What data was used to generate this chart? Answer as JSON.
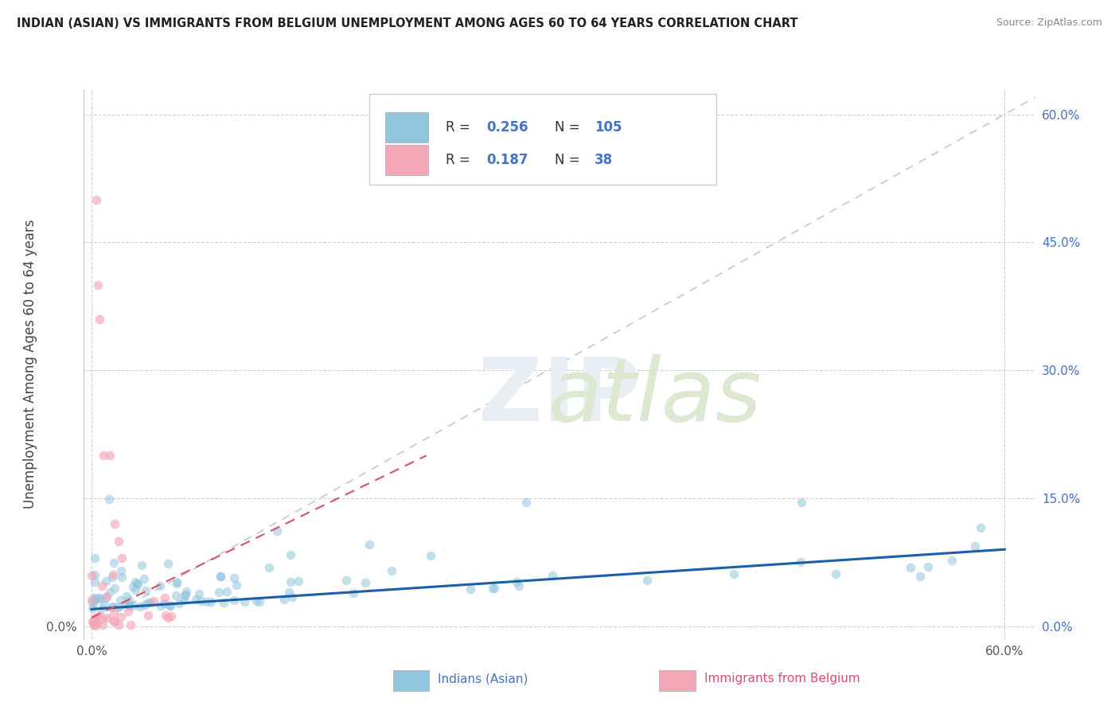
{
  "title": "INDIAN (ASIAN) VS IMMIGRANTS FROM BELGIUM UNEMPLOYMENT AMONG AGES 60 TO 64 YEARS CORRELATION CHART",
  "source": "Source: ZipAtlas.com",
  "ylabel": "Unemployment Among Ages 60 to 64 years",
  "legend_R_blue": "0.256",
  "legend_N_blue": "105",
  "legend_R_pink": "0.187",
  "legend_N_pink": "38",
  "color_blue": "#92c5de",
  "color_pink": "#f4a6b8",
  "color_blue_line": "#1a5fa8",
  "color_pink_line": "#d94f6e",
  "color_diag": "#b0b0b0",
  "ytick_labels": [
    "0.0%",
    "15.0%",
    "30.0%",
    "45.0%",
    "60.0%"
  ],
  "ytick_vals": [
    0.0,
    0.15,
    0.3,
    0.45,
    0.6
  ],
  "xtick_labels": [
    "0.0%",
    "60.0%"
  ],
  "xtick_vals": [
    0.0,
    0.6
  ],
  "xlim": [
    -0.005,
    0.62
  ],
  "ylim": [
    -0.015,
    0.63
  ],
  "blue_line_x": [
    0.0,
    0.6
  ],
  "blue_line_y": [
    0.02,
    0.09
  ],
  "pink_line_x": [
    0.0,
    0.22
  ],
  "pink_line_y": [
    0.01,
    0.2
  ],
  "diag_line_x": [
    0.0,
    0.62
  ],
  "diag_line_y": [
    0.0,
    0.62
  ],
  "legend_label_blue": "Indians (Asian)",
  "legend_label_pink": "Immigrants from Belgium"
}
